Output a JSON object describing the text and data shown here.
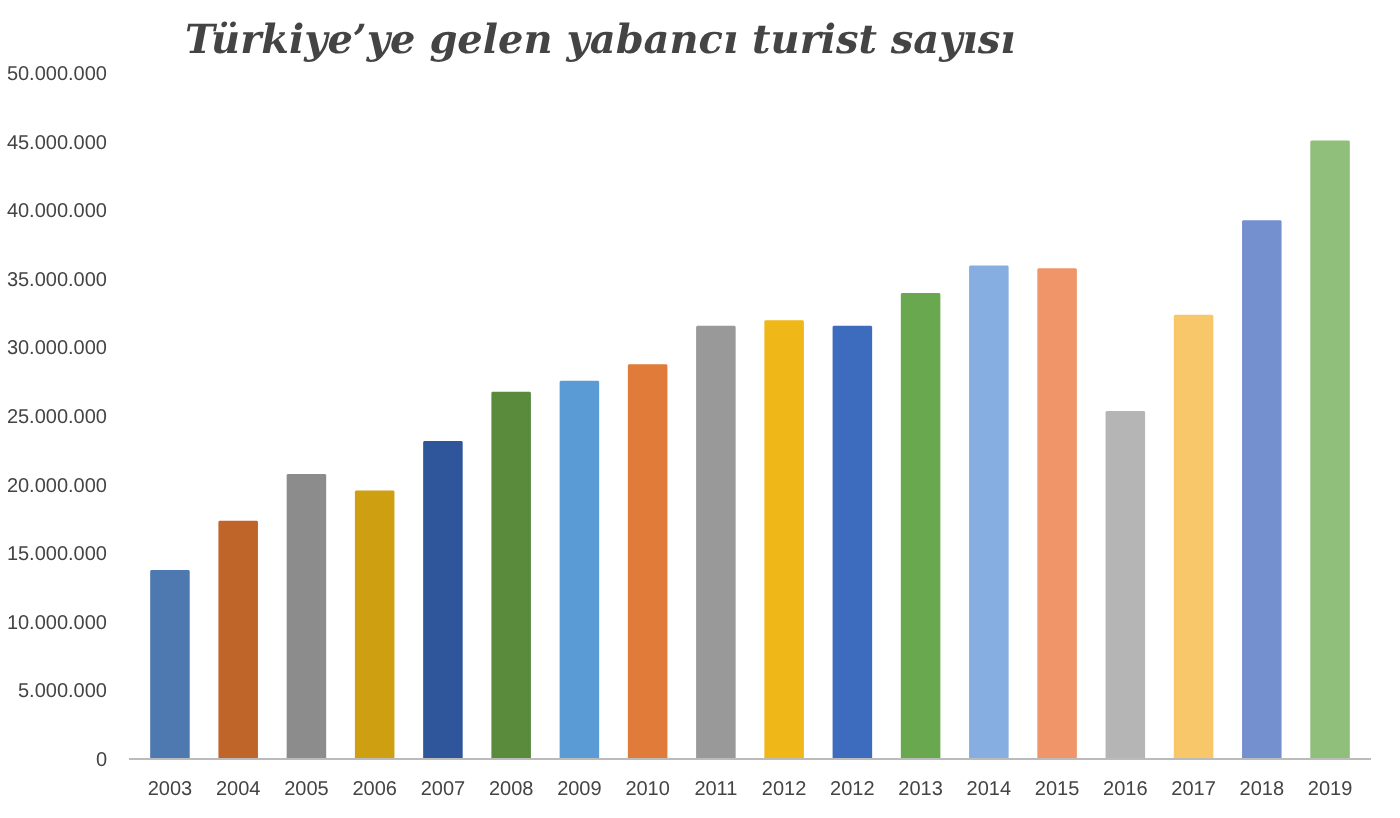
{
  "chart_data": {
    "type": "bar",
    "title": "Türkiye’ye gelen yabancı turist sayısı",
    "categories": [
      "2003",
      "2004",
      "2005",
      "2006",
      "2007",
      "2008",
      "2009",
      "2010",
      "2011",
      "2012",
      "2012",
      "2013",
      "2014",
      "2015",
      "2016",
      "2017",
      "2018",
      "2019"
    ],
    "values": [
      13700000,
      17300000,
      20700000,
      19500000,
      23100000,
      26700000,
      27500000,
      28700000,
      31500000,
      31900000,
      31500000,
      33900000,
      35900000,
      35700000,
      25300000,
      32300000,
      39200000,
      45000000
    ],
    "colors": [
      "#4e79b0",
      "#c0652a",
      "#8c8c8c",
      "#cf9f12",
      "#2f559a",
      "#5a8a3c",
      "#5b9bd5",
      "#e07b39",
      "#999999",
      "#efb718",
      "#3d6cbf",
      "#6aa84f",
      "#86aee0",
      "#f0956a",
      "#b5b5b5",
      "#f8c76a",
      "#7590cf",
      "#8fbf7a"
    ],
    "ylim": [
      0,
      50000000
    ],
    "yticks": [
      {
        "value": 0,
        "label": "0"
      },
      {
        "value": 5000000,
        "label": "5.000.000"
      },
      {
        "value": 10000000,
        "label": "10.000.000"
      },
      {
        "value": 15000000,
        "label": "15.000.000"
      },
      {
        "value": 20000000,
        "label": "20.000.000"
      },
      {
        "value": 25000000,
        "label": "25.000.000"
      },
      {
        "value": 30000000,
        "label": "30.000.000"
      },
      {
        "value": 35000000,
        "label": "35.000.000"
      },
      {
        "value": 40000000,
        "label": "40.000.000"
      },
      {
        "value": 45000000,
        "label": "45.000.000"
      },
      {
        "value": 50000000,
        "label": "50.000.000"
      }
    ],
    "grid": false
  }
}
